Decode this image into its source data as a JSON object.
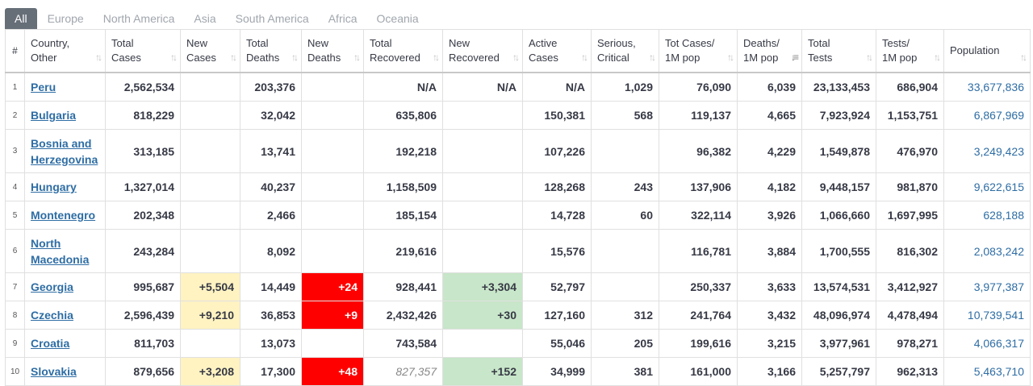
{
  "tabs": [
    {
      "label": "All",
      "active": true
    },
    {
      "label": "Europe",
      "active": false
    },
    {
      "label": "North America",
      "active": false
    },
    {
      "label": "Asia",
      "active": false
    },
    {
      "label": "South America",
      "active": false
    },
    {
      "label": "Africa",
      "active": false
    },
    {
      "label": "Oceania",
      "active": false
    }
  ],
  "columns": [
    {
      "key": "idx",
      "label": "#"
    },
    {
      "key": "country",
      "label": "Country,\nOther"
    },
    {
      "key": "total_cases",
      "label": "Total\nCases"
    },
    {
      "key": "new_cases",
      "label": "New\nCases"
    },
    {
      "key": "total_deaths",
      "label": "Total\nDeaths"
    },
    {
      "key": "new_deaths",
      "label": "New\nDeaths"
    },
    {
      "key": "total_recovered",
      "label": "Total\nRecovered"
    },
    {
      "key": "new_recovered",
      "label": "New\nRecovered"
    },
    {
      "key": "active_cases",
      "label": "Active\nCases"
    },
    {
      "key": "serious_critical",
      "label": "Serious,\nCritical"
    },
    {
      "key": "tot_cases_1m",
      "label": "Tot Cases/\n1M pop"
    },
    {
      "key": "deaths_1m",
      "label": "Deaths/\n1M pop",
      "sorted": true
    },
    {
      "key": "total_tests",
      "label": "Total\nTests"
    },
    {
      "key": "tests_1m",
      "label": "Tests/\n1M pop"
    },
    {
      "key": "population",
      "label": "Population"
    }
  ],
  "rows": [
    {
      "idx": "1",
      "country": "Peru",
      "total_cases": "2,562,534",
      "new_cases": "",
      "total_deaths": "203,376",
      "new_deaths": "",
      "total_recovered": "N/A",
      "new_recovered": "N/A",
      "active_cases": "N/A",
      "serious_critical": "1,029",
      "tot_cases_1m": "76,090",
      "deaths_1m": "6,039",
      "total_tests": "23,133,453",
      "tests_1m": "686,904",
      "population": "33,677,836"
    },
    {
      "idx": "2",
      "country": "Bulgaria",
      "total_cases": "818,229",
      "new_cases": "",
      "total_deaths": "32,042",
      "new_deaths": "",
      "total_recovered": "635,806",
      "new_recovered": "",
      "active_cases": "150,381",
      "serious_critical": "568",
      "tot_cases_1m": "119,137",
      "deaths_1m": "4,665",
      "total_tests": "7,923,924",
      "tests_1m": "1,153,751",
      "population": "6,867,969"
    },
    {
      "idx": "3",
      "country": "Bosnia and Herzegovina",
      "total_cases": "313,185",
      "new_cases": "",
      "total_deaths": "13,741",
      "new_deaths": "",
      "total_recovered": "192,218",
      "new_recovered": "",
      "active_cases": "107,226",
      "serious_critical": "",
      "tot_cases_1m": "96,382",
      "deaths_1m": "4,229",
      "total_tests": "1,549,878",
      "tests_1m": "476,970",
      "population": "3,249,423"
    },
    {
      "idx": "4",
      "country": "Hungary",
      "total_cases": "1,327,014",
      "new_cases": "",
      "total_deaths": "40,237",
      "new_deaths": "",
      "total_recovered": "1,158,509",
      "new_recovered": "",
      "active_cases": "128,268",
      "serious_critical": "243",
      "tot_cases_1m": "137,906",
      "deaths_1m": "4,182",
      "total_tests": "9,448,157",
      "tests_1m": "981,870",
      "population": "9,622,615"
    },
    {
      "idx": "5",
      "country": "Montenegro",
      "total_cases": "202,348",
      "new_cases": "",
      "total_deaths": "2,466",
      "new_deaths": "",
      "total_recovered": "185,154",
      "new_recovered": "",
      "active_cases": "14,728",
      "serious_critical": "60",
      "tot_cases_1m": "322,114",
      "deaths_1m": "3,926",
      "total_tests": "1,066,660",
      "tests_1m": "1,697,995",
      "population": "628,188"
    },
    {
      "idx": "6",
      "country": "North Macedonia",
      "total_cases": "243,284",
      "new_cases": "",
      "total_deaths": "8,092",
      "new_deaths": "",
      "total_recovered": "219,616",
      "new_recovered": "",
      "active_cases": "15,576",
      "serious_critical": "",
      "tot_cases_1m": "116,781",
      "deaths_1m": "3,884",
      "total_tests": "1,700,555",
      "tests_1m": "816,302",
      "population": "2,083,242"
    },
    {
      "idx": "7",
      "country": "Georgia",
      "total_cases": "995,687",
      "new_cases": "+5,504",
      "total_deaths": "14,449",
      "new_deaths": "+24",
      "total_recovered": "928,441",
      "new_recovered": "+3,304",
      "active_cases": "52,797",
      "serious_critical": "",
      "tot_cases_1m": "250,337",
      "deaths_1m": "3,633",
      "total_tests": "13,574,531",
      "tests_1m": "3,412,927",
      "population": "3,977,387"
    },
    {
      "idx": "8",
      "country": "Czechia",
      "total_cases": "2,596,439",
      "new_cases": "+9,210",
      "total_deaths": "36,853",
      "new_deaths": "+9",
      "total_recovered": "2,432,426",
      "new_recovered": "+30",
      "active_cases": "127,160",
      "serious_critical": "312",
      "tot_cases_1m": "241,764",
      "deaths_1m": "3,432",
      "total_tests": "48,096,974",
      "tests_1m": "4,478,494",
      "population": "10,739,541"
    },
    {
      "idx": "9",
      "country": "Croatia",
      "total_cases": "811,703",
      "new_cases": "",
      "total_deaths": "13,073",
      "new_deaths": "",
      "total_recovered": "743,584",
      "new_recovered": "",
      "active_cases": "55,046",
      "serious_critical": "205",
      "tot_cases_1m": "199,616",
      "deaths_1m": "3,215",
      "total_tests": "3,977,961",
      "tests_1m": "978,271",
      "population": "4,066,317"
    },
    {
      "idx": "10",
      "country": "Slovakia",
      "total_cases": "879,656",
      "new_cases": "+3,208",
      "total_deaths": "17,300",
      "new_deaths": "+48",
      "total_recovered": "827,357",
      "new_recovered": "+152",
      "active_cases": "34,999",
      "serious_critical": "381",
      "tot_cases_1m": "161,000",
      "deaths_1m": "3,166",
      "total_tests": "5,257,797",
      "tests_1m": "962,313",
      "population": "5,463,710"
    }
  ],
  "colors": {
    "new_cases": "#fff3c2",
    "new_deaths": "#ff0000",
    "new_recovered": "#c8e6c9",
    "link": "#2e6da4"
  }
}
